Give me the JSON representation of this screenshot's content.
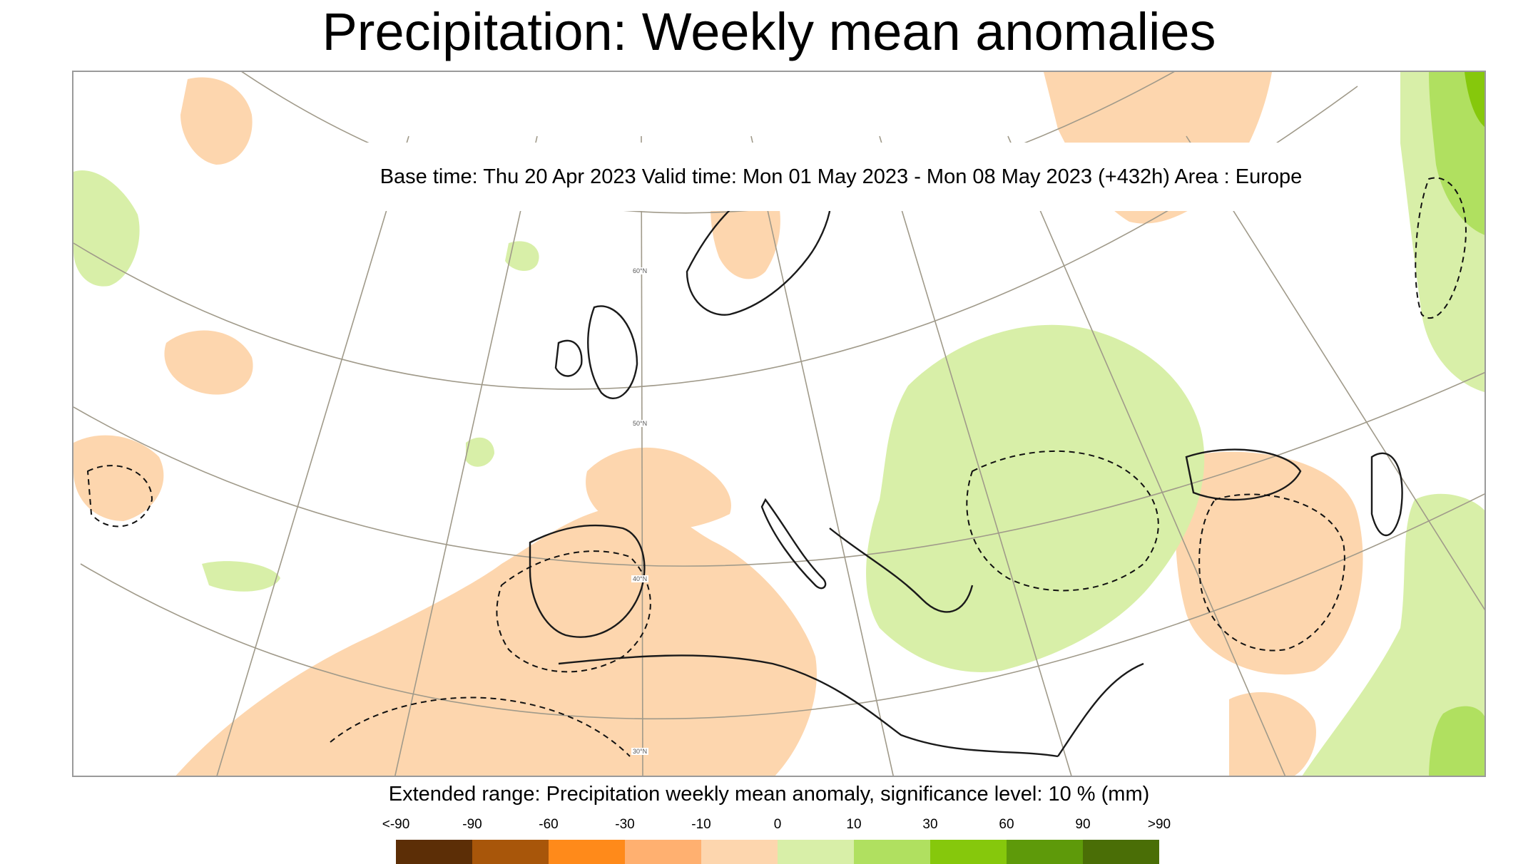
{
  "title": "Precipitation: Weekly mean anomalies",
  "info": "Base time: Thu 20 Apr 2023 Valid time: Mon 01 May 2023 - Mon 08 May 2023 (+432h) Area : Europe",
  "lat_labels": [
    "60°N",
    "50°N",
    "40°N",
    "30°N"
  ],
  "scale": {
    "title": "Extended range: Precipitation weekly mean anomaly, significance level: 10 % (mm)",
    "ticks": [
      "<-90",
      "-90",
      "-60",
      "-30",
      "-10",
      "0",
      "10",
      "30",
      "60",
      "90",
      ">90"
    ],
    "colors": [
      "#5c2e06",
      "#a8560a",
      "#ff8a1a",
      "#ffb070",
      "#fdd6ae",
      "#d8efa8",
      "#b0e060",
      "#86c80c",
      "#5e9a0a",
      "#4a6e06"
    ]
  },
  "legend_colors": {
    "dry_light": "#fdd6ae",
    "dry_medium": "#ffb070",
    "wet_light": "#d8efa8",
    "wet_medium": "#b0e060",
    "wet_strong": "#86c80c",
    "wet_very_strong": "#5e9a0a"
  }
}
